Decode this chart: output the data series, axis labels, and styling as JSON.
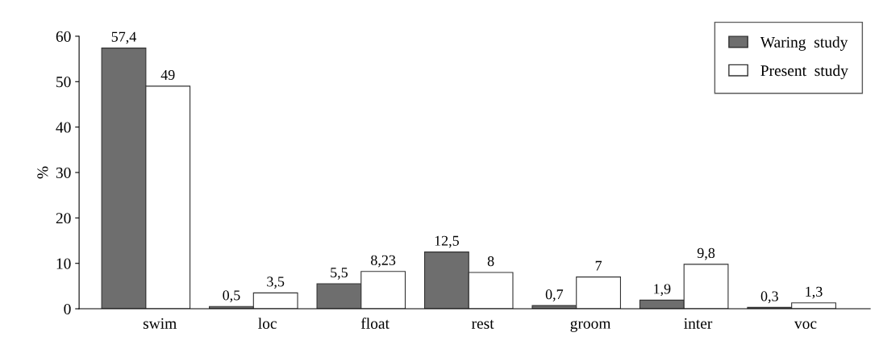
{
  "chart_data": {
    "type": "bar",
    "ylabel": "%",
    "categories": [
      "swim",
      "loc",
      "float",
      "rest",
      "groom",
      "inter",
      "voc"
    ],
    "series": [
      {
        "name": "Waring  study",
        "color": "#6e6e6e",
        "values": [
          57.4,
          0.5,
          5.5,
          12.5,
          0.7,
          1.9,
          0.3
        ],
        "value_labels": [
          "57,4",
          "0,5",
          "5,5",
          "12,5",
          "0,7",
          "1,9",
          "0,3"
        ]
      },
      {
        "name": "Present  study",
        "color": "#ffffff",
        "values": [
          49,
          3.5,
          8.23,
          8,
          7,
          9.8,
          1.3
        ],
        "value_labels": [
          "49",
          "3,5",
          "8,23",
          "8",
          "7",
          "9,8",
          "1,3"
        ]
      }
    ],
    "ylim": [
      0,
      60
    ],
    "yticks": [
      0,
      10,
      20,
      30,
      40,
      50,
      60
    ],
    "grid": false,
    "legend": "top right"
  }
}
